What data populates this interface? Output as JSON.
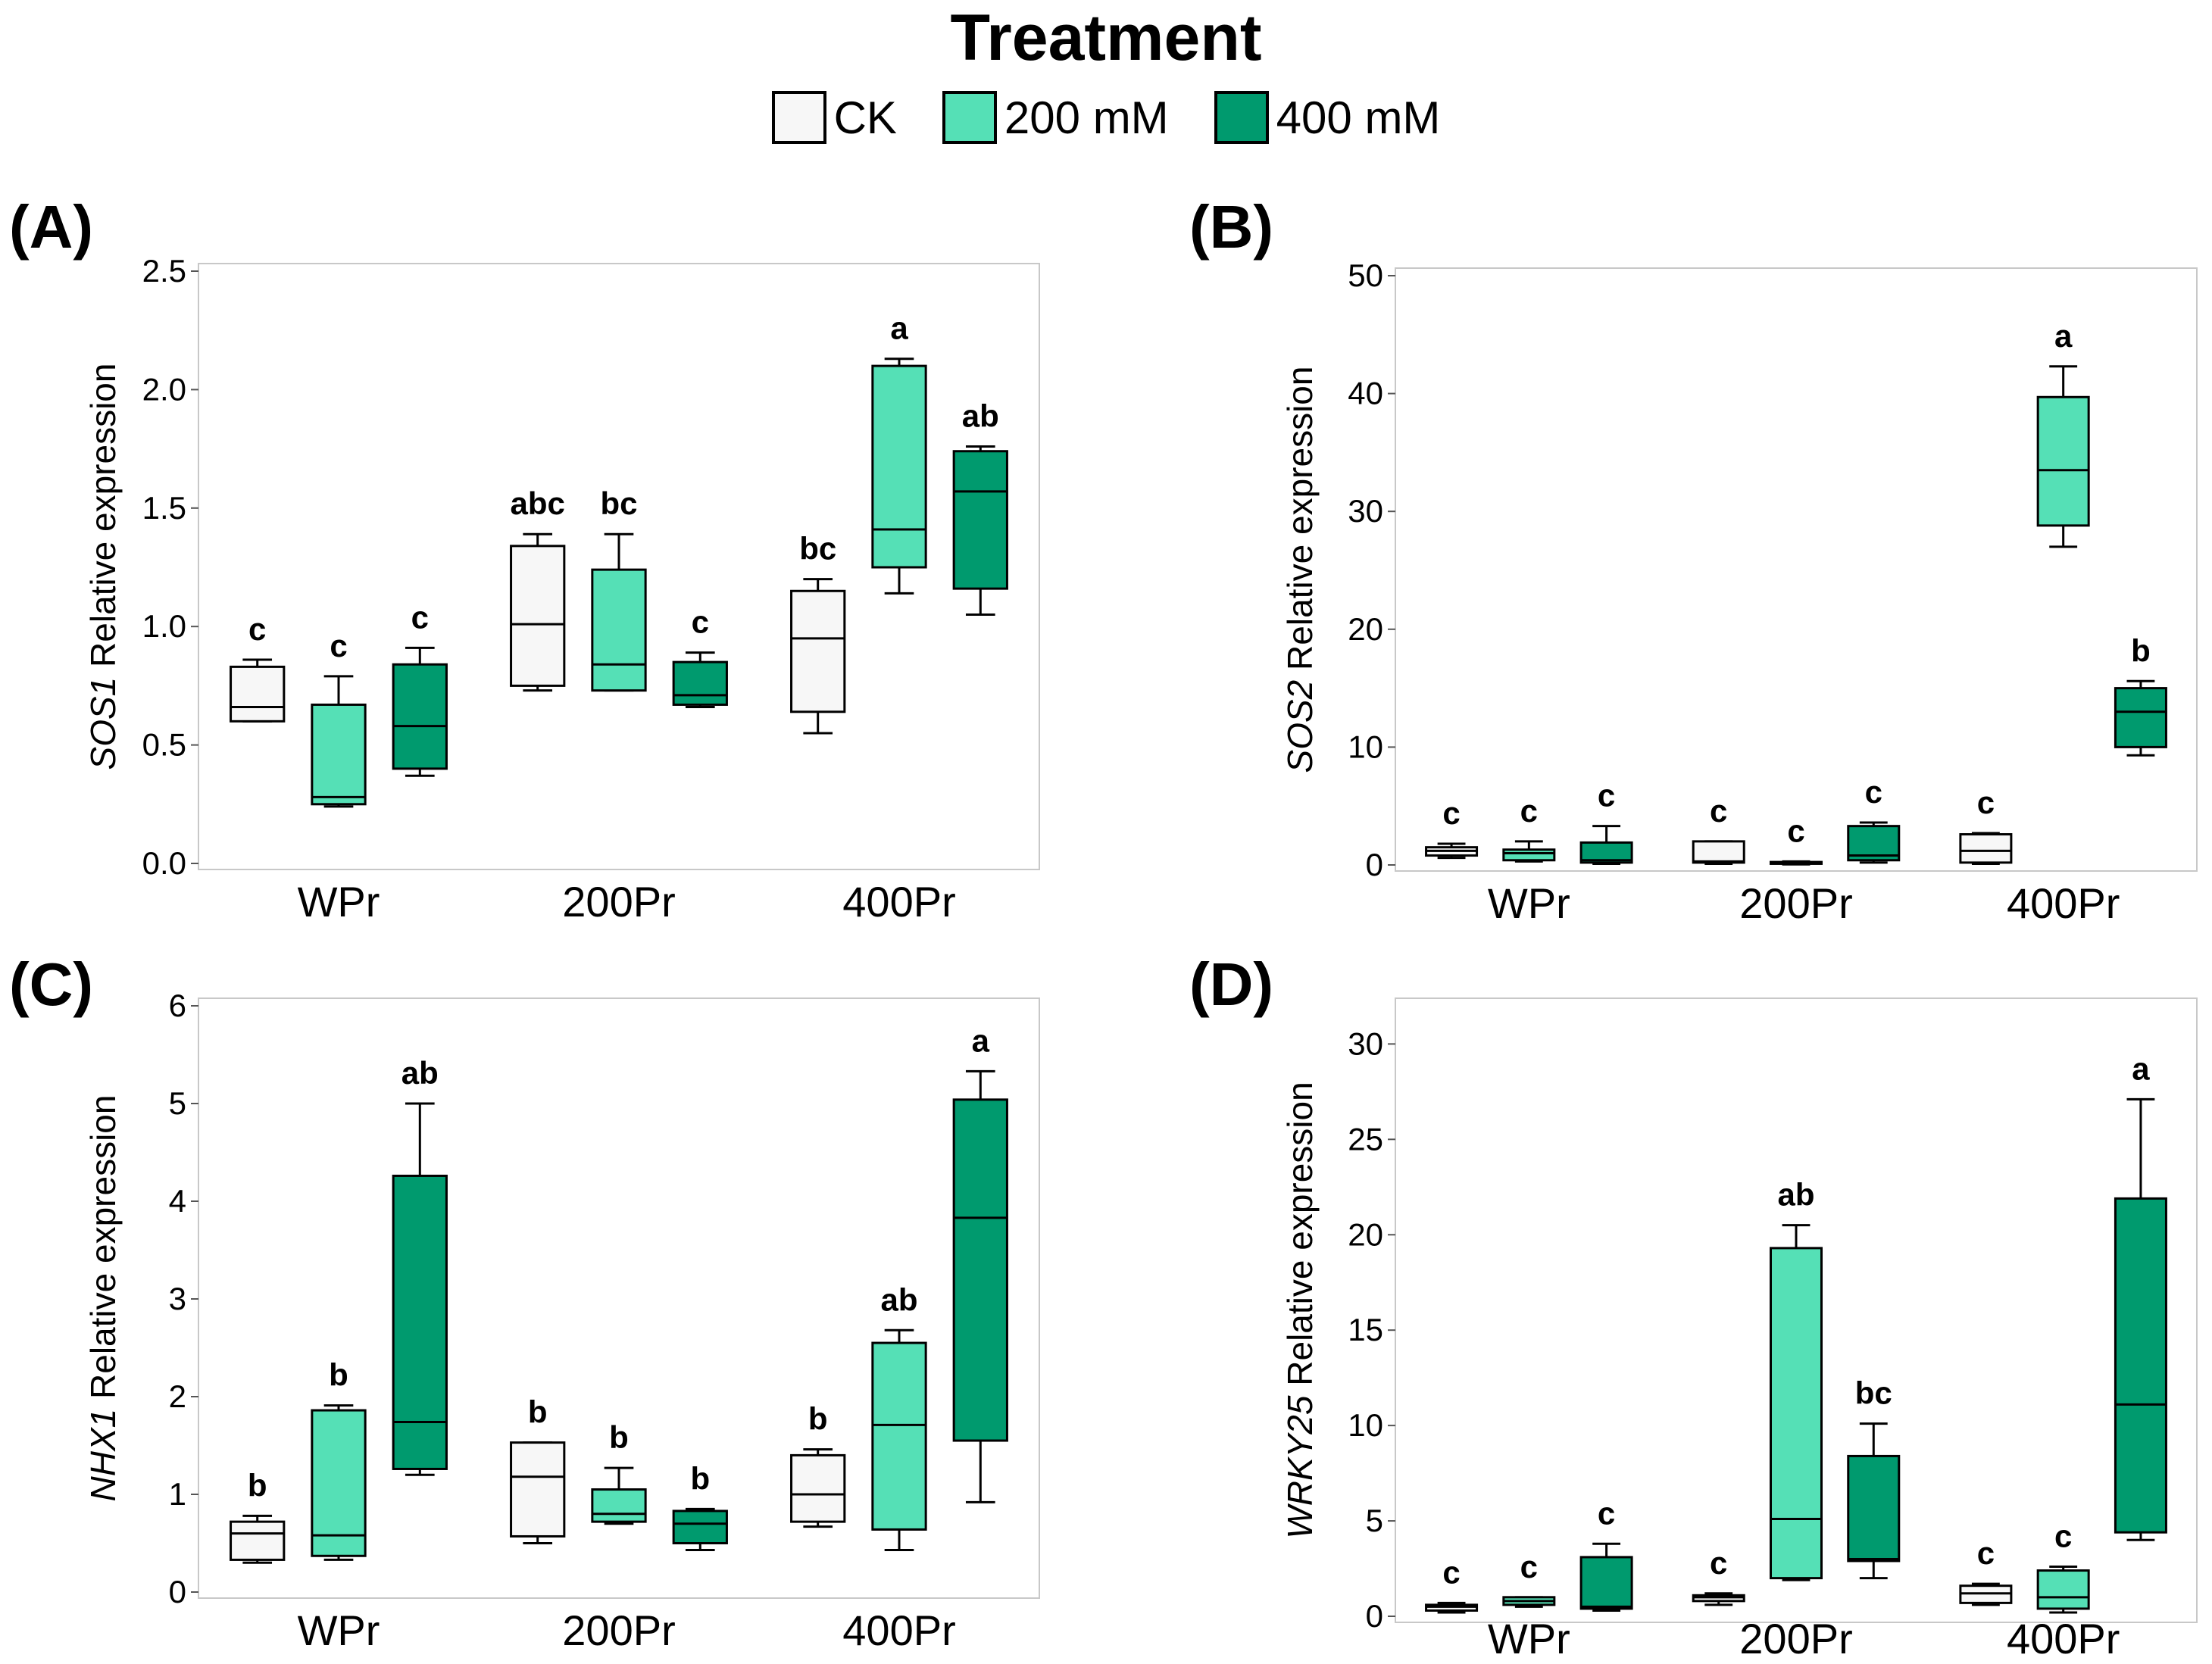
{
  "legend": {
    "title": "Treatment",
    "items": [
      {
        "label": "CK",
        "color": "#f7f7f7"
      },
      {
        "label": "200 mM",
        "color": "#55e0b6"
      },
      {
        "label": "400 mM",
        "color": "#009a6e"
      }
    ]
  },
  "chart_data": [
    {
      "panel": "(A)",
      "type": "box",
      "gene": "SOS1",
      "ylabel_suffix": " Relative expression",
      "ylim": [
        0,
        2.5
      ],
      "yticks": [
        0.0,
        0.5,
        1.0,
        1.5,
        2.0,
        2.5
      ],
      "ytick_labels": [
        "0.0",
        "0.5",
        "1.0",
        "1.5",
        "2.0",
        "2.5"
      ],
      "categories": [
        "WPr",
        "200Pr",
        "400Pr"
      ],
      "series": [
        {
          "name": "CK",
          "boxes": [
            {
              "min": 0.6,
              "q1": 0.6,
              "median": 0.66,
              "q3": 0.83,
              "max": 0.86,
              "letter": "c"
            },
            {
              "min": 0.73,
              "q1": 0.75,
              "median": 1.01,
              "q3": 1.34,
              "max": 1.39,
              "letter": "abc"
            },
            {
              "min": 0.55,
              "q1": 0.64,
              "median": 0.95,
              "q3": 1.15,
              "max": 1.2,
              "letter": "bc"
            }
          ]
        },
        {
          "name": "200 mM",
          "boxes": [
            {
              "min": 0.24,
              "q1": 0.25,
              "median": 0.28,
              "q3": 0.67,
              "max": 0.79,
              "letter": "c"
            },
            {
              "min": 0.73,
              "q1": 0.73,
              "median": 0.84,
              "q3": 1.24,
              "max": 1.39,
              "letter": "bc"
            },
            {
              "min": 1.14,
              "q1": 1.25,
              "median": 1.41,
              "q3": 2.1,
              "max": 2.13,
              "letter": "a"
            }
          ]
        },
        {
          "name": "400 mM",
          "boxes": [
            {
              "min": 0.37,
              "q1": 0.4,
              "median": 0.58,
              "q3": 0.84,
              "max": 0.91,
              "letter": "c"
            },
            {
              "min": 0.66,
              "q1": 0.67,
              "median": 0.71,
              "q3": 0.85,
              "max": 0.89,
              "letter": "c"
            },
            {
              "min": 1.05,
              "q1": 1.16,
              "median": 1.57,
              "q3": 1.74,
              "max": 1.76,
              "letter": "ab"
            }
          ]
        }
      ]
    },
    {
      "panel": "(B)",
      "type": "box",
      "gene": "SOS2",
      "ylabel_suffix": " Relative expression",
      "ylim": [
        0,
        50
      ],
      "yticks": [
        0,
        10,
        20,
        30,
        40,
        50
      ],
      "ytick_labels": [
        "0",
        "10",
        "20",
        "30",
        "40",
        "50"
      ],
      "categories": [
        "WPr",
        "200Pr",
        "400Pr"
      ],
      "series": [
        {
          "name": "CK",
          "boxes": [
            {
              "min": 0.6,
              "q1": 0.8,
              "median": 1.2,
              "q3": 1.5,
              "max": 1.8,
              "letter": "c"
            },
            {
              "min": 0.1,
              "q1": 0.2,
              "median": 0.3,
              "q3": 2.0,
              "max": 2.0,
              "letter": "c"
            },
            {
              "min": 0.1,
              "q1": 0.2,
              "median": 1.2,
              "q3": 2.6,
              "max": 2.7,
              "letter": "c"
            }
          ]
        },
        {
          "name": "200 mM",
          "boxes": [
            {
              "min": 0.3,
              "q1": 0.4,
              "median": 1.0,
              "q3": 1.3,
              "max": 2.0,
              "letter": "c"
            },
            {
              "min": 0.05,
              "q1": 0.1,
              "median": 0.15,
              "q3": 0.25,
              "max": 0.3,
              "letter": "c"
            },
            {
              "min": 27.0,
              "q1": 28.8,
              "median": 33.5,
              "q3": 39.7,
              "max": 42.3,
              "letter": "a"
            }
          ]
        },
        {
          "name": "400 mM",
          "boxes": [
            {
              "min": 0.1,
              "q1": 0.2,
              "median": 0.4,
              "q3": 1.9,
              "max": 3.3,
              "letter": "c"
            },
            {
              "min": 0.2,
              "q1": 0.4,
              "median": 0.8,
              "q3": 3.3,
              "max": 3.6,
              "letter": "c"
            },
            {
              "min": 9.3,
              "q1": 10.0,
              "median": 13.0,
              "q3": 15.0,
              "max": 15.6,
              "letter": "b"
            }
          ]
        }
      ]
    },
    {
      "panel": "(C)",
      "type": "box",
      "gene": "NHX1",
      "ylabel_suffix": " Relative expression",
      "ylim": [
        0,
        6
      ],
      "yticks": [
        0,
        1,
        2,
        3,
        4,
        5,
        6
      ],
      "ytick_labels": [
        "0",
        "1",
        "2",
        "3",
        "4",
        "5",
        "6"
      ],
      "categories": [
        "WPr",
        "200Pr",
        "400Pr"
      ],
      "series": [
        {
          "name": "CK",
          "boxes": [
            {
              "min": 0.3,
              "q1": 0.33,
              "median": 0.6,
              "q3": 0.72,
              "max": 0.78,
              "letter": "b"
            },
            {
              "min": 0.5,
              "q1": 0.57,
              "median": 1.18,
              "q3": 1.53,
              "max": 1.53,
              "letter": "b"
            },
            {
              "min": 0.67,
              "q1": 0.72,
              "median": 1.0,
              "q3": 1.4,
              "max": 1.46,
              "letter": "b"
            }
          ]
        },
        {
          "name": "200 mM",
          "boxes": [
            {
              "min": 0.33,
              "q1": 0.37,
              "median": 0.58,
              "q3": 1.86,
              "max": 1.91,
              "letter": "b"
            },
            {
              "min": 0.7,
              "q1": 0.72,
              "median": 0.8,
              "q3": 1.05,
              "max": 1.27,
              "letter": "b"
            },
            {
              "min": 0.43,
              "q1": 0.64,
              "median": 1.71,
              "q3": 2.55,
              "max": 2.68,
              "letter": "ab"
            }
          ]
        },
        {
          "name": "400 mM",
          "boxes": [
            {
              "min": 1.2,
              "q1": 1.26,
              "median": 1.74,
              "q3": 4.26,
              "max": 5.0,
              "letter": "ab"
            },
            {
              "min": 0.43,
              "q1": 0.5,
              "median": 0.7,
              "q3": 0.83,
              "max": 0.85,
              "letter": "b"
            },
            {
              "min": 0.92,
              "q1": 1.55,
              "median": 3.83,
              "q3": 5.04,
              "max": 5.33,
              "letter": "a"
            }
          ]
        }
      ]
    },
    {
      "panel": "(D)",
      "type": "box",
      "gene": "WRKY25",
      "ylabel_suffix": " Relative expression",
      "ylim": [
        0,
        32
      ],
      "yticks": [
        0,
        5,
        10,
        15,
        20,
        25,
        30
      ],
      "ytick_labels": [
        "0",
        "5",
        "10",
        "15",
        "20",
        "25",
        "30"
      ],
      "categories": [
        "WPr",
        "200Pr",
        "400Pr"
      ],
      "series": [
        {
          "name": "CK",
          "boxes": [
            {
              "min": 0.2,
              "q1": 0.3,
              "median": 0.5,
              "q3": 0.6,
              "max": 0.7,
              "letter": "c"
            },
            {
              "min": 0.6,
              "q1": 0.8,
              "median": 1.0,
              "q3": 1.1,
              "max": 1.2,
              "letter": "c"
            },
            {
              "min": 0.6,
              "q1": 0.7,
              "median": 1.2,
              "q3": 1.6,
              "max": 1.7,
              "letter": "c"
            }
          ]
        },
        {
          "name": "200 mM",
          "boxes": [
            {
              "min": 0.5,
              "q1": 0.6,
              "median": 0.8,
              "q3": 1.0,
              "max": 1.0,
              "letter": "c"
            },
            {
              "min": 1.9,
              "q1": 2.0,
              "median": 5.1,
              "q3": 19.3,
              "max": 20.5,
              "letter": "ab"
            },
            {
              "min": 0.2,
              "q1": 0.4,
              "median": 1.0,
              "q3": 2.4,
              "max": 2.6,
              "letter": "c"
            }
          ]
        },
        {
          "name": "400 mM",
          "boxes": [
            {
              "min": 0.3,
              "q1": 0.4,
              "median": 0.5,
              "q3": 3.1,
              "max": 3.8,
              "letter": "c"
            },
            {
              "min": 2.0,
              "q1": 2.9,
              "median": 3.0,
              "q3": 8.4,
              "max": 10.1,
              "letter": "bc"
            },
            {
              "min": 4.0,
              "q1": 4.4,
              "median": 11.1,
              "q3": 21.9,
              "max": 27.1,
              "letter": "a"
            }
          ]
        }
      ]
    }
  ]
}
